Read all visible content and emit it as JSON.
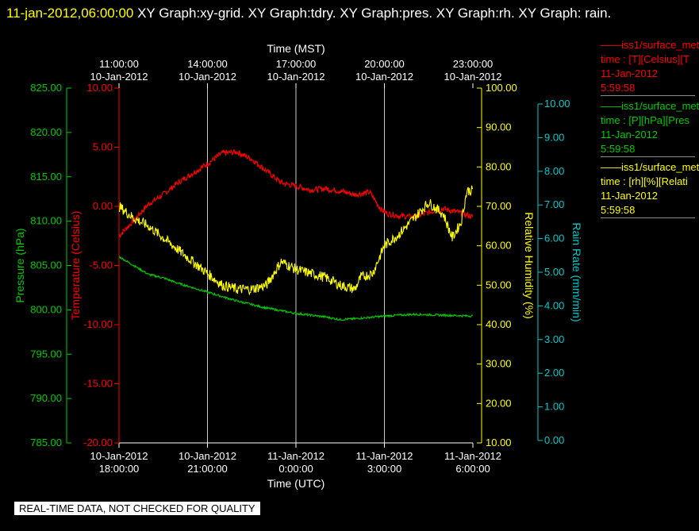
{
  "header": {
    "timestamp": "11-jan-2012,06:00:00",
    "title": "  XY Graph:xy-grid.  XY Graph:tdry.  XY Graph:pres.  XY Graph:rh.  XY Graph: rain."
  },
  "legend": [
    {
      "line1": "——iss1/surface_met",
      "line2": "time : [T][Celsius][T",
      "line3": "11-Jan-2012",
      "line4": "5:59:58",
      "color": "#ff0000"
    },
    {
      "line1": "——iss1/surface_met",
      "line2": "time : [P][hPa][Pres",
      "line3": "11-Jan-2012",
      "line4": "5:59:58",
      "color": "#00cc00"
    },
    {
      "line1": "——iss1/surface_met",
      "line2": "time : [rh][%][Relati",
      "line3": "11-Jan-2012",
      "line4": "5:59:58",
      "color": "#ffff00"
    }
  ],
  "disclaimer": "REAL-TIME DATA, NOT CHECKED FOR QUALITY",
  "colors": {
    "temperature": "#ff0000",
    "pressure": "#00cc00",
    "humidity": "#ffff00",
    "rain": "#00cccc",
    "grid": "#cccccc",
    "axis": "#ffffff"
  },
  "chart_data": {
    "type": "line",
    "xlabel_top": "Time (MST)",
    "xlabel_bottom": "Time (UTC)",
    "top_ticks": [
      {
        "line1": "11:00:00",
        "line2": "10-Jan-2012"
      },
      {
        "line1": "14:00:00",
        "line2": "10-Jan-2012"
      },
      {
        "line1": "17:00:00",
        "line2": "10-Jan-2012"
      },
      {
        "line1": "20:00:00",
        "line2": "10-Jan-2012"
      },
      {
        "line1": "23:00:00",
        "line2": "10-Jan-2012"
      }
    ],
    "bottom_ticks": [
      {
        "line1": "10-Jan-2012",
        "line2": "18:00:00"
      },
      {
        "line1": "10-Jan-2012",
        "line2": "21:00:00"
      },
      {
        "line1": "11-Jan-2012",
        "line2": "0:00:00"
      },
      {
        "line1": "11-Jan-2012",
        "line2": "3:00:00"
      },
      {
        "line1": "11-Jan-2012",
        "line2": "6:00:00"
      }
    ],
    "x_unit": "hours since 10-Jan-2012 18:00 UTC",
    "xlim": [
      0,
      12
    ],
    "grid_x": [
      3,
      6,
      9
    ],
    "axes": {
      "temperature": {
        "label": "Temperature (Celsius)",
        "ylim": [
          -20,
          10
        ],
        "ticks": [
          "10.00",
          "5.00",
          "0.00",
          "-5.00",
          "-10.00",
          "-15.00",
          "-20.00"
        ]
      },
      "pressure": {
        "label": "Pressure (hPa)",
        "ylim": [
          785,
          825
        ],
        "ticks": [
          "825.00",
          "820.00",
          "815.00",
          "810.00",
          "805.00",
          "800.00",
          "795.00",
          "790.00",
          "785.00"
        ]
      },
      "humidity": {
        "label": "Relative Humidity (%)",
        "ylim": [
          10,
          100
        ],
        "ticks": [
          "100.00",
          "90.00",
          "80.00",
          "70.00",
          "60.00",
          "50.00",
          "40.00",
          "30.00",
          "20.00",
          "10.00"
        ]
      },
      "rain": {
        "label": "Rain Rate (mm/min)",
        "ylim": [
          0,
          10.5
        ],
        "ticks": [
          "10.00",
          "9.00",
          "8.00",
          "7.00",
          "6.00",
          "5.00",
          "4.00",
          "3.00",
          "2.00",
          "1.00",
          "0.00"
        ]
      }
    },
    "series": [
      {
        "name": "iss1/surface_met T (Celsius)",
        "axis": "temperature",
        "noise": 0.25,
        "x": [
          0,
          0.5,
          1,
          1.5,
          2,
          2.5,
          3,
          3.5,
          4,
          4.5,
          5,
          5.5,
          6,
          6.5,
          7,
          7.5,
          8,
          8.5,
          8.9,
          9.1,
          9.5,
          10,
          10.5,
          11,
          11.5,
          12
        ],
        "y": [
          -2.5,
          -1.2,
          0.2,
          1.0,
          2.0,
          2.8,
          3.6,
          4.5,
          4.6,
          4.0,
          3.0,
          2.0,
          1.7,
          1.4,
          1.5,
          1.3,
          1.0,
          1.2,
          -0.3,
          -0.6,
          -0.8,
          -0.9,
          -0.5,
          -0.2,
          -0.5,
          -0.9
        ]
      },
      {
        "name": "iss1/surface_met P (hPa)",
        "axis": "pressure",
        "noise": 0.12,
        "x": [
          0,
          0.5,
          1,
          1.5,
          2,
          3,
          4,
          5,
          6,
          7,
          7.5,
          8,
          9,
          10,
          11,
          12
        ],
        "y": [
          806.0,
          805.0,
          804.0,
          803.6,
          803.0,
          802.0,
          801.0,
          800.2,
          799.6,
          799.2,
          798.9,
          799.0,
          799.3,
          799.5,
          799.4,
          799.3
        ]
      },
      {
        "name": "iss1/surface_met rh (%)",
        "axis": "humidity",
        "noise": 1.3,
        "x": [
          0,
          0.5,
          1,
          1.5,
          2,
          2.5,
          3,
          3.5,
          4,
          4.5,
          5,
          5.5,
          6,
          6.5,
          7,
          7.5,
          8,
          8.2,
          8.6,
          9,
          9.5,
          10,
          10.5,
          11,
          11.3,
          11.6,
          11.8,
          12
        ],
        "y": [
          70,
          67,
          65,
          62,
          59,
          56,
          53,
          50,
          49,
          49,
          50,
          56,
          54,
          53,
          52,
          50,
          49,
          52,
          53,
          60,
          63,
          67,
          71,
          68,
          62,
          66,
          74,
          74
        ]
      }
    ]
  }
}
